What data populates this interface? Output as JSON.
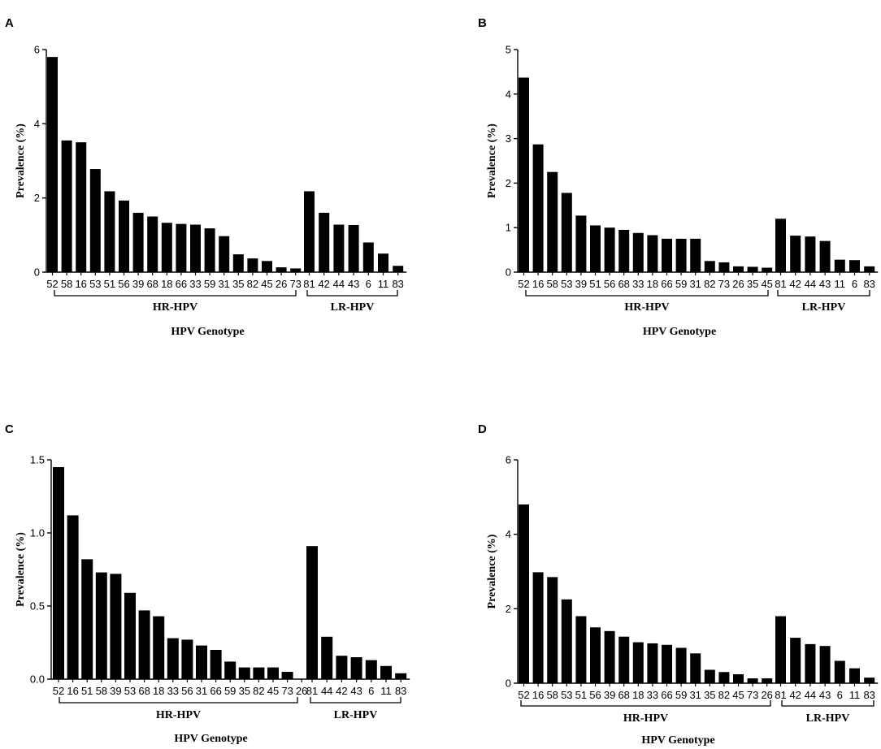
{
  "chart_data": [
    {
      "panel": "A",
      "type": "bar",
      "ylabel": "Prevalence (%)",
      "xlabel": "HPV Genotype",
      "ylim": [
        0,
        6
      ],
      "yticks": [
        "0",
        "2",
        "4",
        "6"
      ],
      "hr_label": "HR-HPV",
      "lr_label": "LR-HPV",
      "hr_categories": [
        "52",
        "58",
        "16",
        "53",
        "51",
        "56",
        "39",
        "68",
        "18",
        "66",
        "33",
        "59",
        "31",
        "35",
        "82",
        "45",
        "26",
        "73"
      ],
      "hr_values": [
        5.8,
        3.55,
        3.5,
        2.78,
        2.18,
        1.93,
        1.6,
        1.5,
        1.33,
        1.3,
        1.28,
        1.18,
        0.97,
        0.48,
        0.37,
        0.3,
        0.13,
        0.1
      ],
      "lr_categories": [
        "81",
        "42",
        "44",
        "43",
        "6",
        "11",
        "83"
      ],
      "lr_values": [
        2.18,
        1.6,
        1.28,
        1.27,
        0.8,
        0.5,
        0.17
      ]
    },
    {
      "panel": "B",
      "type": "bar",
      "ylabel": "Prevalence (%)",
      "xlabel": "HPV Genotype",
      "ylim": [
        0,
        5
      ],
      "yticks": [
        "0",
        "1",
        "2",
        "3",
        "4",
        "5"
      ],
      "hr_label": "HR-HPV",
      "lr_label": "LR-HPV",
      "hr_categories": [
        "52",
        "16",
        "58",
        "53",
        "39",
        "51",
        "56",
        "68",
        "33",
        "18",
        "66",
        "59",
        "31",
        "82",
        "73",
        "26",
        "35",
        "45"
      ],
      "hr_values": [
        4.37,
        2.87,
        2.25,
        1.78,
        1.27,
        1.05,
        1.0,
        0.95,
        0.88,
        0.83,
        0.75,
        0.75,
        0.75,
        0.25,
        0.22,
        0.13,
        0.12,
        0.1
      ],
      "lr_categories": [
        "81",
        "42",
        "44",
        "43",
        "11",
        "6",
        "83"
      ],
      "lr_values": [
        1.2,
        0.82,
        0.8,
        0.7,
        0.28,
        0.27,
        0.13
      ]
    },
    {
      "panel": "C",
      "type": "bar",
      "ylabel": "Prevalence (%)",
      "xlabel": "HPV Genotype",
      "ylim": [
        0,
        1.5
      ],
      "yticks": [
        "0.0",
        "0.5",
        "1.0",
        "1.5"
      ],
      "hr_label": "HR-HPV",
      "lr_label": "LR-HPV",
      "hr_categories": [
        "52",
        "16",
        "51",
        "58",
        "39",
        "53",
        "68",
        "18",
        "33",
        "56",
        "31",
        "66",
        "59",
        "35",
        "82",
        "45",
        "73",
        "26"
      ],
      "hr_values": [
        1.45,
        1.12,
        0.82,
        0.73,
        0.72,
        0.59,
        0.47,
        0.43,
        0.28,
        0.27,
        0.23,
        0.2,
        0.12,
        0.08,
        0.08,
        0.08,
        0.05,
        0.0
      ],
      "lr_categories": [
        "81",
        "44",
        "42",
        "43",
        "6",
        "11",
        "83"
      ],
      "lr_values": [
        0.91,
        0.29,
        0.16,
        0.15,
        0.13,
        0.09,
        0.04
      ]
    },
    {
      "panel": "D",
      "type": "bar",
      "ylabel": "Prevalence (%)",
      "xlabel": "HPV Genotype",
      "ylim": [
        0,
        6
      ],
      "yticks": [
        "0",
        "2",
        "4",
        "6"
      ],
      "hr_label": "HR-HPV",
      "lr_label": "LR-HPV",
      "hr_categories": [
        "52",
        "16",
        "58",
        "53",
        "51",
        "56",
        "39",
        "68",
        "18",
        "33",
        "66",
        "59",
        "31",
        "35",
        "82",
        "45",
        "73",
        "26"
      ],
      "hr_values": [
        4.8,
        2.98,
        2.85,
        2.25,
        1.8,
        1.5,
        1.4,
        1.25,
        1.1,
        1.07,
        1.03,
        0.95,
        0.8,
        0.36,
        0.3,
        0.24,
        0.13,
        0.13
      ],
      "lr_categories": [
        "81",
        "42",
        "44",
        "43",
        "6",
        "11",
        "83"
      ],
      "lr_values": [
        1.8,
        1.22,
        1.05,
        1.0,
        0.6,
        0.4,
        0.15
      ]
    }
  ]
}
